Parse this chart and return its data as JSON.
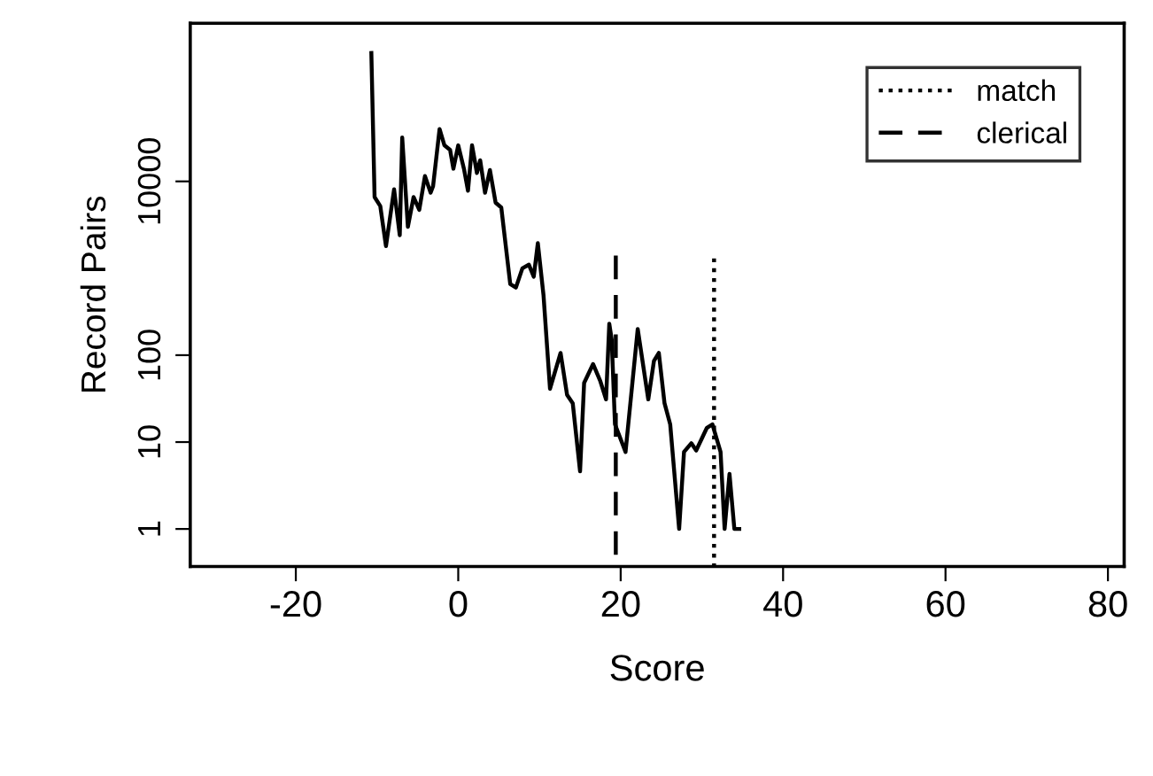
{
  "chart_data": {
    "type": "line",
    "xlabel": "Score",
    "ylabel": "Record Pairs",
    "log": true,
    "grid": false,
    "legend": "top right",
    "xlim": [
      -33,
      82
    ],
    "xticks": [
      -20,
      0,
      20,
      40,
      60,
      80
    ],
    "ylim": [
      0.37,
      660000
    ],
    "yticks": [
      1,
      10,
      100,
      10000
    ],
    "series": [
      {
        "color": "#000000",
        "line_style": "solid",
        "x": [
          -10.7,
          -10.3,
          -9.6,
          -8.9,
          -7.9,
          -7.2,
          -6.9,
          -6.2,
          -5.5,
          -4.8,
          -4.1,
          -3.4,
          -3.1,
          -2.3,
          -1.7,
          -1.0,
          -0.6,
          0,
          0.7,
          1.2,
          1.7,
          2.3,
          2.7,
          3.3,
          3.9,
          4.6,
          5.3,
          6.4,
          7.1,
          7.9,
          8.7,
          9.3,
          9.8,
          10.5,
          11.3,
          12.6,
          13.4,
          14.1,
          15.0,
          15.5,
          16.6,
          17.5,
          18.2,
          18.6,
          18.9,
          19.3,
          20.6,
          22.1,
          23.4,
          24.1,
          24.7,
          25.4,
          26.1,
          27.2,
          27.8,
          28.7,
          29.3,
          30.6,
          31.3,
          32.3,
          32.8,
          33.4,
          34.0,
          34.6
        ],
        "values": [
          300000,
          6600,
          5200,
          1800,
          8100,
          2400,
          32000,
          3000,
          6600,
          4700,
          11500,
          7400,
          8800,
          40000,
          26000,
          23000,
          14000,
          26000,
          14000,
          7800,
          26000,
          12500,
          17500,
          7400,
          13500,
          5700,
          5000,
          660,
          600,
          1000,
          1100,
          800,
          1950,
          490,
          41,
          106,
          35,
          28,
          4.6,
          48,
          79,
          50,
          31,
          230,
          150,
          16,
          7.7,
          200,
          31,
          86,
          106,
          28,
          16,
          1,
          7.7,
          9.7,
          8,
          14.5,
          16,
          7.7,
          1,
          4.3,
          1,
          1
        ]
      },
      {
        "name": "match",
        "color": "#000000",
        "line_style": "dotted",
        "x": [
          31.5,
          31.5
        ],
        "values": [
          1300,
          0.37
        ]
      },
      {
        "name": "clerical",
        "color": "#000000",
        "line_style": "dashed",
        "x": [
          19.4,
          19.4
        ],
        "values": [
          1400,
          0.37
        ]
      }
    ]
  }
}
